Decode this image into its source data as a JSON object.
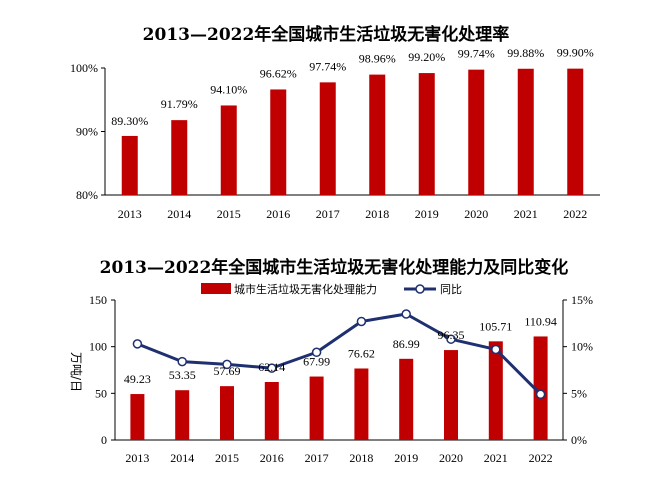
{
  "chart_data": [
    {
      "type": "bar",
      "title": "2013—2022年全国城市生活垃圾无害化处理率",
      "categories": [
        "2013",
        "2014",
        "2015",
        "2016",
        "2017",
        "2018",
        "2019",
        "2020",
        "2021",
        "2022"
      ],
      "values": [
        89.3,
        91.79,
        94.1,
        96.62,
        97.74,
        98.96,
        99.2,
        99.74,
        99.88,
        99.9
      ],
      "value_labels": [
        "89.30%",
        "91.79%",
        "94.10%",
        "96.62%",
        "97.74%",
        "98.96%",
        "99.20%",
        "99.74%",
        "99.88%",
        "99.90%"
      ],
      "ylim": [
        80,
        100
      ],
      "yticks": [
        80,
        90,
        100
      ],
      "ytick_labels": [
        "80%",
        "90%",
        "100%"
      ],
      "bar_color": "#c00000",
      "grid": false
    },
    {
      "type": "bar+line",
      "title": "2013—2022年全国城市生活垃圾无害化处理能力及同比变化",
      "categories": [
        "2013",
        "2014",
        "2015",
        "2016",
        "2017",
        "2018",
        "2019",
        "2020",
        "2021",
        "2022"
      ],
      "series": [
        {
          "name": "城市生活垃圾无害化处理能力",
          "kind": "bar",
          "axis": "left",
          "values": [
            49.23,
            53.35,
            57.69,
            62.14,
            67.99,
            76.62,
            86.99,
            96.35,
            105.71,
            110.94
          ],
          "value_labels": [
            "49.23",
            "53.35",
            "57.69",
            "62.14",
            "67.99",
            "76.62",
            "86.99",
            "96.35",
            "105.71",
            "110.94"
          ],
          "color": "#c00000"
        },
        {
          "name": "同比",
          "kind": "line",
          "axis": "right",
          "values": [
            10.3,
            8.4,
            8.1,
            7.7,
            9.4,
            12.7,
            13.5,
            10.8,
            9.7,
            4.9
          ],
          "color": "#1f3070"
        }
      ],
      "ylabel": "万吨/日",
      "ylim": [
        0,
        150
      ],
      "yticks": [
        0,
        50,
        100,
        150
      ],
      "ytick_labels": [
        "0",
        "50",
        "100",
        "150"
      ],
      "y2lim": [
        0,
        15
      ],
      "y2ticks": [
        0,
        5,
        10,
        15
      ],
      "y2tick_labels": [
        "0%",
        "5%",
        "10%",
        "15%"
      ],
      "legend_position": "top-center",
      "grid": false
    }
  ]
}
